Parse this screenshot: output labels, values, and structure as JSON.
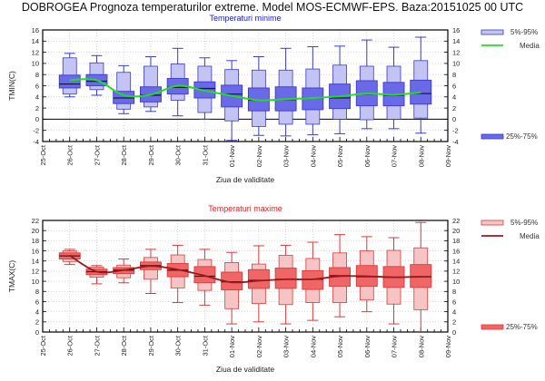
{
  "title": "DOBROGEA  Prognoza temperaturilor extreme.  Model MOS-ECMWF-EPS. Baza:20151025 00 UTC",
  "chart_data": [
    {
      "type": "box",
      "title": "Temperaturi minime",
      "xlabel": "Ziua de validitate",
      "ylabel": "TMIN(C)",
      "ylim": [
        -4,
        16
      ],
      "yticks": [
        -4,
        -2,
        0,
        2,
        4,
        6,
        8,
        10,
        12,
        14,
        16
      ],
      "grid": true,
      "legend_position": "right",
      "x_ticks": [
        "25-Oct",
        "26-Oct",
        "27-Oct",
        "28-Oct",
        "29-Oct",
        "30-Oct",
        "31-Oct",
        "01-Nov",
        "02-Nov",
        "03-Nov",
        "04-Nov",
        "05-Nov",
        "06-Nov",
        "07-Nov",
        "08-Nov",
        "09-Nov"
      ],
      "legend": {
        "outer": "5%-95%",
        "mean": "Media",
        "inner": "25%-75%"
      },
      "colors": {
        "outer_fill": "#c4c4f4",
        "inner_fill": "#6a6ae8",
        "stroke": "#3a3ac8",
        "median": "#1a1a40",
        "mean": "#22dd22",
        "title": "#1a1acc"
      },
      "categories": [
        "26-Oct",
        "27-Oct",
        "28-Oct",
        "29-Oct",
        "30-Oct",
        "31-Oct",
        "01-Nov",
        "02-Nov",
        "03-Nov",
        "04-Nov",
        "05-Nov",
        "06-Nov",
        "07-Nov",
        "08-Nov"
      ],
      "boxes": [
        {
          "min": 4.0,
          "p5": 4.5,
          "p25": 5.6,
          "median": 6.3,
          "p75": 7.9,
          "p95": 11.0,
          "max": 11.8
        },
        {
          "min": 4.3,
          "p5": 5.3,
          "p25": 6.0,
          "median": 6.8,
          "p75": 8.0,
          "p95": 10.1,
          "max": 11.4
        },
        {
          "min": 1.0,
          "p5": 1.8,
          "p25": 2.8,
          "median": 3.8,
          "p75": 5.0,
          "p95": 8.4,
          "max": 9.6
        },
        {
          "min": 1.4,
          "p5": 2.2,
          "p25": 3.1,
          "median": 4.3,
          "p75": 5.8,
          "p95": 9.5,
          "max": 11.2
        },
        {
          "min": 0.6,
          "p5": 3.4,
          "p25": 4.5,
          "median": 5.7,
          "p75": 7.3,
          "p95": 9.9,
          "max": 12.7
        },
        {
          "min": 0.0,
          "p5": 1.2,
          "p25": 3.8,
          "median": 5.5,
          "p75": 6.7,
          "p95": 9.5,
          "max": 11.0
        },
        {
          "min": -3.8,
          "p5": -0.3,
          "p25": 2.2,
          "median": 4.5,
          "p75": 6.1,
          "p95": 8.9,
          "max": 10.5
        },
        {
          "min": -2.9,
          "p5": -1.3,
          "p25": 1.5,
          "median": 3.4,
          "p75": 5.6,
          "p95": 8.8,
          "max": 11.2
        },
        {
          "min": -3.0,
          "p5": -0.9,
          "p25": 1.5,
          "median": 3.5,
          "p75": 5.8,
          "p95": 8.8,
          "max": 12.7
        },
        {
          "min": -2.8,
          "p5": -0.9,
          "p25": 1.7,
          "median": 3.8,
          "p75": 5.6,
          "p95": 9.0,
          "max": 13.0
        },
        {
          "min": -2.6,
          "p5": 0.0,
          "p25": 1.9,
          "median": 3.8,
          "p75": 6.3,
          "p95": 9.7,
          "max": 13.1
        },
        {
          "min": -1.7,
          "p5": -0.1,
          "p25": 2.4,
          "median": 4.5,
          "p75": 6.9,
          "p95": 9.5,
          "max": 14.2
        },
        {
          "min": -1.7,
          "p5": 0.0,
          "p25": 2.4,
          "median": 4.3,
          "p75": 6.6,
          "p95": 9.5,
          "max": 12.9
        },
        {
          "min": -2.5,
          "p5": 0.2,
          "p25": 2.7,
          "median": 4.6,
          "p75": 7.0,
          "p95": 10.5,
          "max": 14.7
        }
      ],
      "mean": [
        7.0,
        7.0,
        4.3,
        4.4,
        6.0,
        5.1,
        4.2,
        3.4,
        3.6,
        3.8,
        4.1,
        4.6,
        4.4,
        4.8
      ]
    },
    {
      "type": "box",
      "title": "Temperaturi maxime",
      "xlabel": "Ziua de validitate",
      "ylabel": "TMAX(C)",
      "ylim": [
        0,
        22
      ],
      "yticks": [
        0,
        2,
        4,
        6,
        8,
        10,
        12,
        14,
        16,
        18,
        20,
        22
      ],
      "grid": true,
      "legend_position": "right",
      "x_ticks": [
        "25-Oct",
        "26-Oct",
        "27-Oct",
        "28-Oct",
        "29-Oct",
        "30-Oct",
        "31-Oct",
        "01-Nov",
        "02-Nov",
        "03-Nov",
        "04-Nov",
        "05-Nov",
        "06-Nov",
        "07-Nov",
        "08-Nov",
        "09-Nov"
      ],
      "legend": {
        "outer": "5%-95%",
        "mean": "Media",
        "inner": "25%-75%"
      },
      "colors": {
        "outer_fill": "#f6c4c4",
        "inner_fill": "#f06666",
        "stroke": "#d83a3a",
        "median": "#5a1010",
        "mean": "#991a1a",
        "title": "#dd2222"
      },
      "categories": [
        "26-Oct",
        "27-Oct",
        "28-Oct",
        "29-Oct",
        "30-Oct",
        "31-Oct",
        "01-Nov",
        "02-Nov",
        "03-Nov",
        "04-Nov",
        "05-Nov",
        "06-Nov",
        "07-Nov",
        "08-Nov"
      ],
      "boxes": [
        {
          "min": 13.3,
          "p5": 13.9,
          "p25": 14.4,
          "median": 15.0,
          "p75": 15.6,
          "p95": 16.0,
          "max": 16.3
        },
        {
          "min": 9.5,
          "p5": 10.8,
          "p25": 11.3,
          "median": 11.9,
          "p75": 12.4,
          "p95": 12.8,
          "max": 13.1
        },
        {
          "min": 9.7,
          "p5": 10.7,
          "p25": 11.5,
          "median": 12.2,
          "p75": 12.7,
          "p95": 13.2,
          "max": 14.4
        },
        {
          "min": 7.6,
          "p5": 10.4,
          "p25": 12.3,
          "median": 13.1,
          "p75": 13.8,
          "p95": 14.7,
          "max": 16.3
        },
        {
          "min": 5.8,
          "p5": 8.7,
          "p25": 10.9,
          "median": 12.2,
          "p75": 13.5,
          "p95": 15.2,
          "max": 17.1
        },
        {
          "min": 5.3,
          "p5": 8.2,
          "p25": 9.7,
          "median": 11.0,
          "p75": 12.9,
          "p95": 14.3,
          "max": 16.3
        },
        {
          "min": 1.6,
          "p5": 4.6,
          "p25": 8.3,
          "median": 9.9,
          "p75": 11.8,
          "p95": 13.7,
          "max": 15.7
        },
        {
          "min": 2.0,
          "p5": 5.6,
          "p25": 8.6,
          "median": 10.2,
          "p75": 12.3,
          "p95": 13.4,
          "max": 17.0
        },
        {
          "min": 1.6,
          "p5": 5.4,
          "p25": 8.6,
          "median": 10.4,
          "p75": 12.6,
          "p95": 15.1,
          "max": 17.1
        },
        {
          "min": 2.3,
          "p5": 5.8,
          "p25": 8.4,
          "median": 10.4,
          "p75": 12.1,
          "p95": 14.5,
          "max": 17.7
        },
        {
          "min": 3.0,
          "p5": 5.8,
          "p25": 9.0,
          "median": 11.1,
          "p75": 12.7,
          "p95": 15.6,
          "max": 19.2
        },
        {
          "min": 4.0,
          "p5": 6.3,
          "p25": 9.0,
          "median": 10.9,
          "p75": 13.1,
          "p95": 16.0,
          "max": 18.8
        },
        {
          "min": 1.6,
          "p5": 5.5,
          "p25": 8.8,
          "median": 10.8,
          "p75": 12.9,
          "p95": 16.1,
          "max": 18.6
        },
        {
          "min": 0.1,
          "p5": 4.4,
          "p25": 8.8,
          "median": 10.9,
          "p75": 13.3,
          "p95": 16.6,
          "max": 21.6
        }
      ],
      "mean": [
        15.1,
        11.9,
        12.2,
        13.0,
        12.3,
        11.1,
        9.8,
        10.1,
        10.4,
        10.4,
        11.0,
        11.0,
        10.8,
        10.9
      ]
    }
  ]
}
